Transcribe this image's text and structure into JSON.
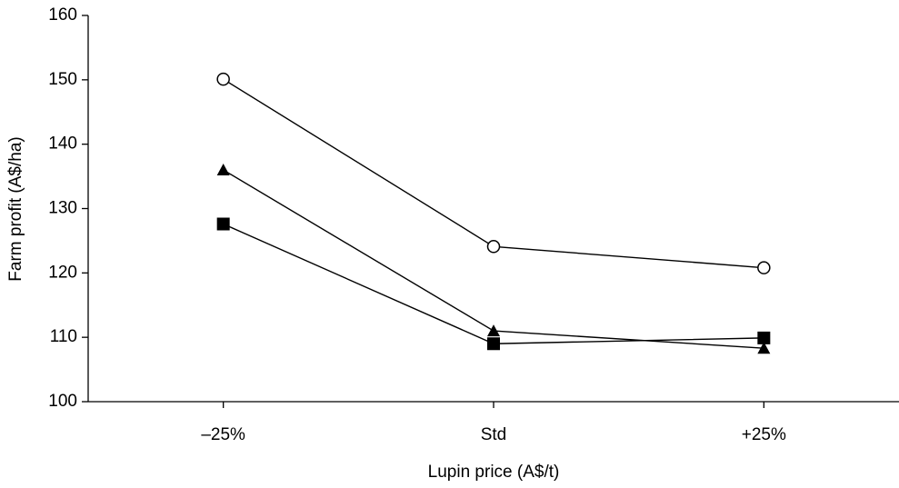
{
  "chart_data": {
    "type": "line",
    "x_label": "Lupin price (A$/t)",
    "y_label": "Farm profit (A$/ha)",
    "categories": [
      "–25%",
      "Std",
      "+25%"
    ],
    "series": [
      {
        "marker": "open-circle",
        "color": "#000000",
        "values": [
          150.1,
          124.1,
          120.8
        ]
      },
      {
        "marker": "triangle",
        "color": "#000000",
        "values": [
          136,
          111,
          108.3
        ]
      },
      {
        "marker": "square",
        "color": "#000000",
        "values": [
          127.6,
          109,
          109.9
        ]
      }
    ],
    "ylim": [
      100,
      160
    ],
    "yticks": [
      100,
      110,
      120,
      130,
      140,
      150,
      160
    ],
    "grid": false
  }
}
